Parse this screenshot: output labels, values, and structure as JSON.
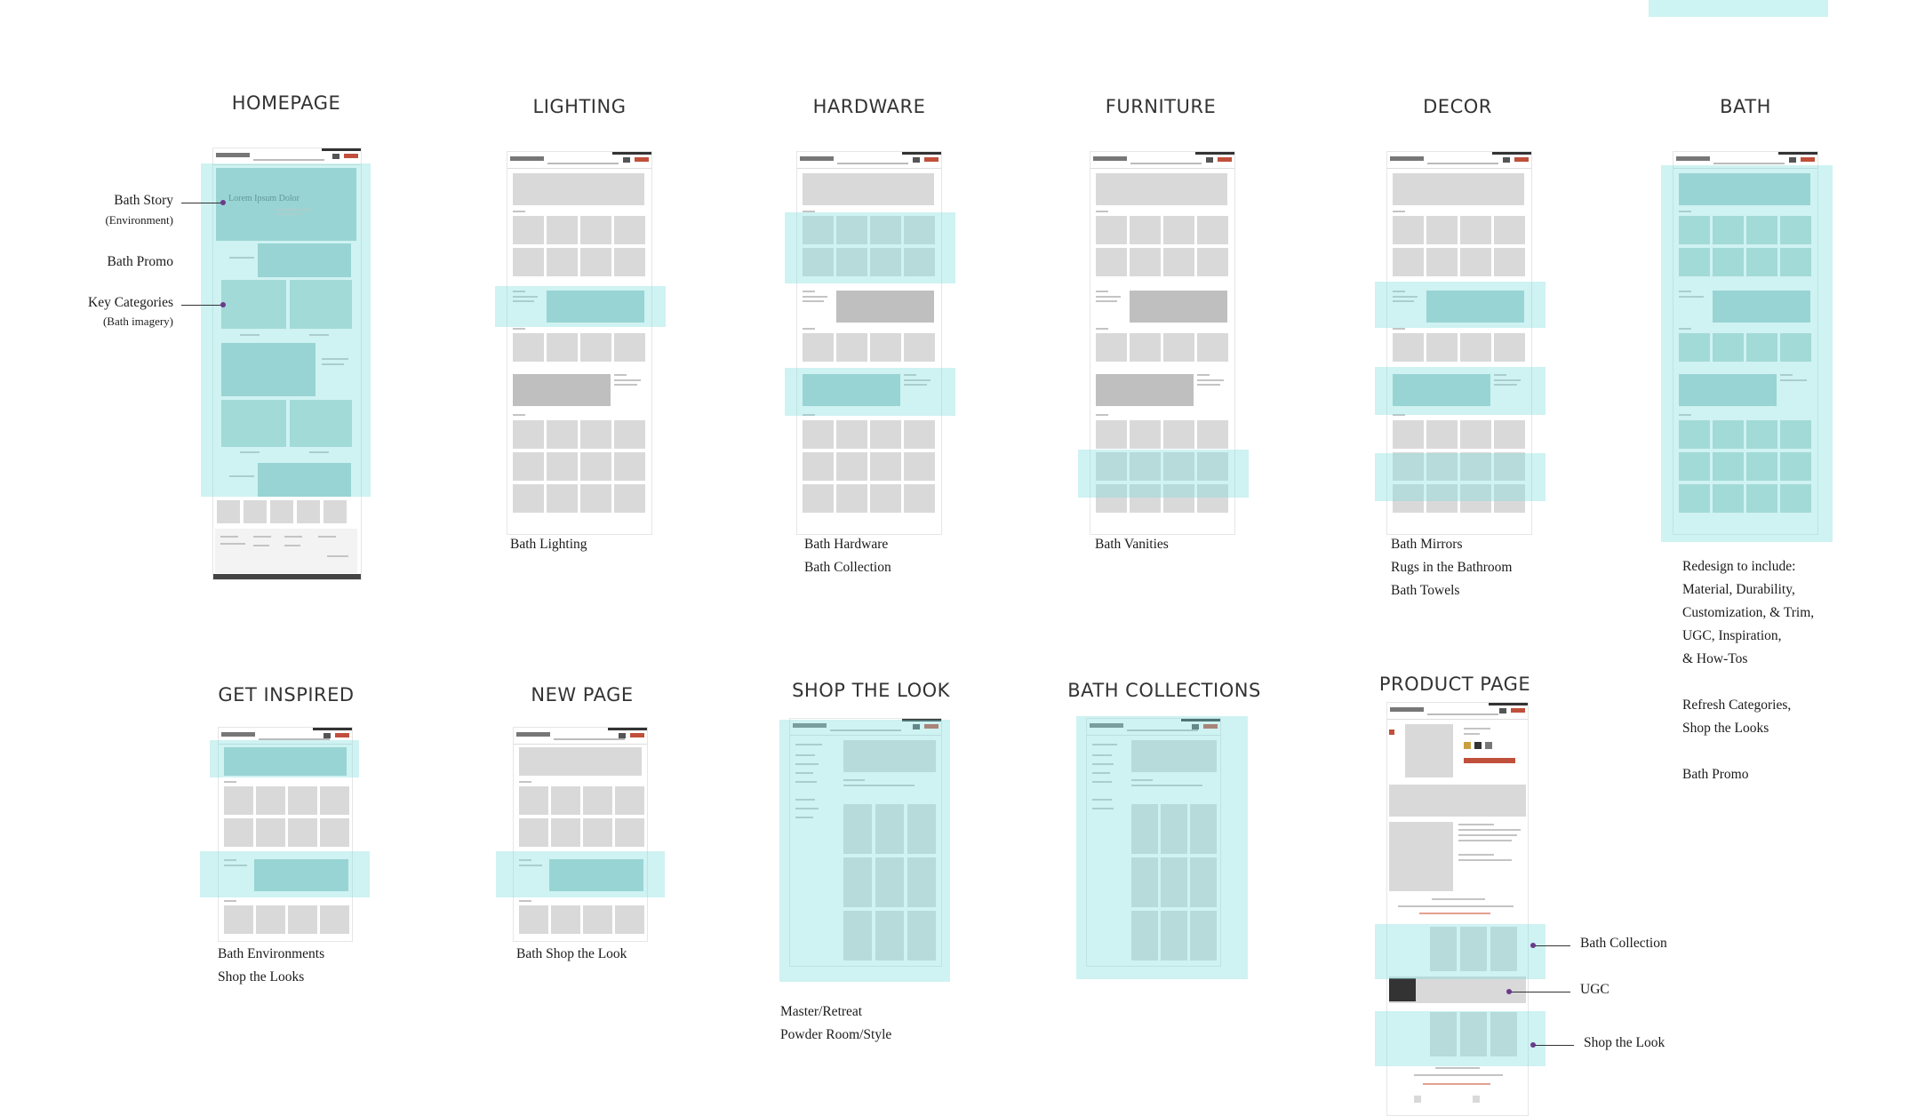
{
  "pages": {
    "homepage": {
      "title": "HOMEPAGE",
      "headline": "Lorem Ipsum Dolor"
    },
    "lighting": {
      "title": "LIGHTING",
      "notes": [
        "Bath Lighting"
      ]
    },
    "hardware": {
      "title": "HARDWARE",
      "notes": [
        "Bath Hardware",
        "Bath Collection"
      ]
    },
    "furniture": {
      "title": "FURNITURE",
      "notes": [
        "Bath Vanities"
      ]
    },
    "decor": {
      "title": "DECOR",
      "notes": [
        "Bath Mirrors",
        "Rugs in the Bathroom",
        "Bath Towels"
      ]
    },
    "bath": {
      "title": "BATH",
      "notes": [
        "Redesign to include:",
        "Material, Durability,",
        "Customization, & Trim,",
        "UGC, Inspiration,",
        "& How-Tos",
        "",
        "Refresh Categories,",
        "Shop the Looks",
        "",
        "Bath Promo"
      ]
    },
    "get_inspired": {
      "title": "GET INSPIRED",
      "notes": [
        "Bath Environments",
        "Shop the Looks"
      ]
    },
    "new_page": {
      "title": "NEW PAGE",
      "notes": [
        "Bath Shop the Look"
      ]
    },
    "shop_the_look": {
      "title": "SHOP THE LOOK",
      "notes": [
        "Master/Retreat",
        "Powder Room/Style"
      ]
    },
    "bath_collections": {
      "title": "BATH COLLECTIONS"
    },
    "product_page": {
      "title": "PRODUCT PAGE"
    }
  },
  "homepage_annotations": {
    "bath_story": "Bath Story",
    "bath_story_sub": "(Environment)",
    "bath_promo": "Bath Promo",
    "key_categories": "Key Categories",
    "key_categories_sub": "(Bath imagery)"
  },
  "product_annotations": {
    "bath_collection": "Bath Collection",
    "ugc": "UGC",
    "shop_the_look": "Shop the Look"
  },
  "colors": {
    "highlight": "#82dcde",
    "annotation_dot": "#6b3a8c",
    "brand_red": "#c0503c"
  }
}
